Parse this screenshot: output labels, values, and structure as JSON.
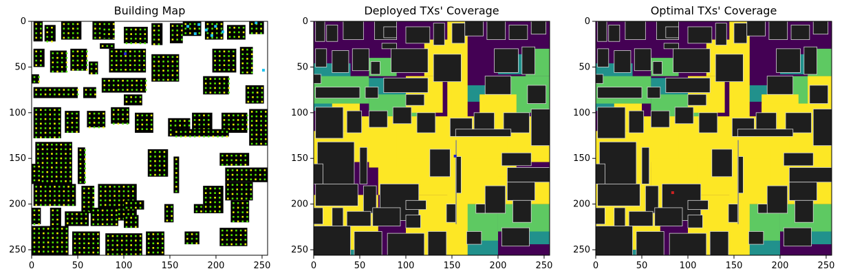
{
  "figure": {
    "panels": [
      {
        "id": "building",
        "title": "Building Map",
        "background": "#ffffff"
      },
      {
        "id": "deployed",
        "title": "Deployed TXs' Coverage",
        "background": "#440154"
      },
      {
        "id": "optimal",
        "title": "Optimal TXs' Coverage",
        "background": "#440154"
      }
    ]
  },
  "chart_data": [
    {
      "type": "heatmap",
      "title": "Building Map",
      "xlabel": "",
      "ylabel": "",
      "xlim": [
        0,
        256
      ],
      "ylim": [
        256,
        0
      ],
      "x_ticks": [
        0,
        50,
        100,
        150,
        200,
        250
      ],
      "y_ticks": [
        0,
        50,
        100,
        150,
        200,
        250
      ],
      "colors": {
        "background": "#ffffff",
        "building": "#000000",
        "candidate_tx": "#55e600",
        "candidate_alt": "#e6f500",
        "deployed_tx": "#22c4f0",
        "marker": "#2222cc"
      }
    },
    {
      "type": "heatmap",
      "title": "Deployed TXs' Coverage",
      "xlabel": "",
      "ylabel": "",
      "xlim": [
        0,
        256
      ],
      "ylim": [
        256,
        0
      ],
      "x_ticks": [
        0,
        50,
        100,
        150,
        200,
        250
      ],
      "y_ticks": [
        0,
        50,
        100,
        150,
        200,
        250
      ],
      "colormap": [
        "#440154",
        "#21918c",
        "#5ec962",
        "#fde725"
      ]
    },
    {
      "type": "heatmap",
      "title": "Optimal TXs' Coverage",
      "xlabel": "",
      "ylabel": "",
      "xlim": [
        0,
        256
      ],
      "ylim": [
        256,
        0
      ],
      "x_ticks": [
        0,
        50,
        100,
        150,
        200,
        250
      ],
      "y_ticks": [
        0,
        50,
        100,
        150,
        200,
        250
      ],
      "colormap": [
        "#440154",
        "#21918c",
        "#5ec962",
        "#fde725"
      ]
    }
  ]
}
